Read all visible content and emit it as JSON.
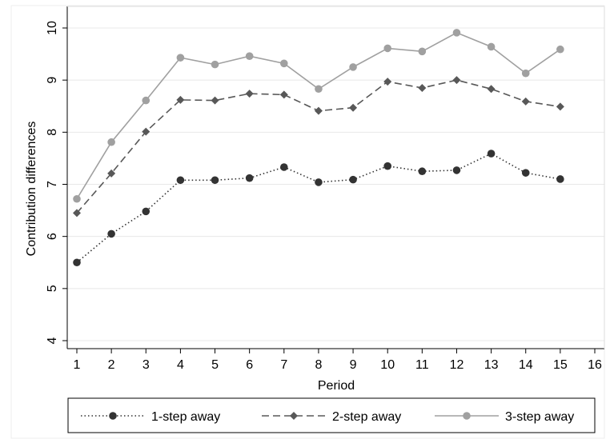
{
  "chart_data": {
    "type": "line",
    "xlabel": "Period",
    "ylabel": "Contribution differences",
    "xlim": [
      1,
      16
    ],
    "ylim": [
      4,
      10
    ],
    "x_ticks": [
      "1",
      "2",
      "3",
      "4",
      "5",
      "6",
      "7",
      "8",
      "9",
      "10",
      "11",
      "12",
      "13",
      "14",
      "15",
      "16"
    ],
    "y_ticks": [
      "4",
      "5",
      "6",
      "7",
      "8",
      "9",
      "10"
    ],
    "grid": true,
    "legend_position": "bottom",
    "x": [
      1,
      2,
      3,
      4,
      5,
      6,
      7,
      8,
      9,
      10,
      11,
      12,
      13,
      14,
      15
    ],
    "series": [
      {
        "name": "1-step away",
        "color": "#333333",
        "line_style": "dotted",
        "marker": "circle",
        "values": [
          5.5,
          6.05,
          6.48,
          7.08,
          7.08,
          7.12,
          7.33,
          7.04,
          7.09,
          7.35,
          7.25,
          7.27,
          7.59,
          7.22,
          7.1
        ]
      },
      {
        "name": "2-step away",
        "color": "#585858",
        "line_style": "dashed",
        "marker": "diamond",
        "values": [
          6.45,
          7.21,
          8.01,
          8.62,
          8.61,
          8.74,
          8.72,
          8.41,
          8.47,
          8.97,
          8.85,
          9.0,
          8.83,
          8.59,
          8.49
        ]
      },
      {
        "name": "3-step away",
        "color": "#a0a0a0",
        "line_style": "solid",
        "marker": "circle",
        "values": [
          6.72,
          7.81,
          8.61,
          9.43,
          9.3,
          9.46,
          9.32,
          8.83,
          9.25,
          9.61,
          9.55,
          9.91,
          9.64,
          9.13,
          9.59
        ]
      }
    ]
  }
}
